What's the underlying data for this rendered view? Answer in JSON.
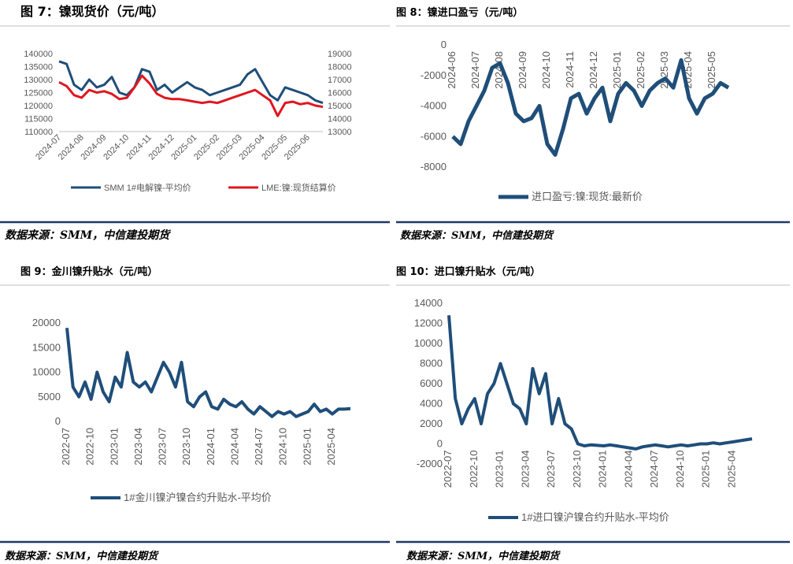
{
  "chart_data": [
    {
      "type": "line",
      "title": "图 7：镍现货价（元/吨）",
      "source": "数据来源：SMM，中信建投期货",
      "categories": [
        "2024-07",
        null,
        null,
        "2024-08",
        null,
        null,
        "2024-09",
        null,
        null,
        "2024-10",
        null,
        null,
        "2024-11",
        null,
        null,
        "2024-12",
        null,
        null,
        "2025-01",
        null,
        null,
        "2025-02",
        null,
        null,
        "2025-03",
        null,
        null,
        "2025-04",
        null,
        null,
        "2025-05",
        null,
        null,
        "2025-06",
        null,
        null
      ],
      "ylim": [
        110000,
        140000
      ],
      "yticks": [
        110000,
        115000,
        120000,
        125000,
        130000,
        135000,
        140000
      ],
      "y2lim": [
        13000,
        19000
      ],
      "y2ticks": [
        13000,
        14000,
        15000,
        16000,
        17000,
        18000,
        19000
      ],
      "legend": "bottom",
      "series": [
        {
          "name": "SMM 1#电解镍-平均价",
          "color": "#1f4e79",
          "values": [
            137000,
            136000,
            128000,
            126000,
            130000,
            127000,
            128000,
            131000,
            125000,
            124000,
            127000,
            134000,
            133000,
            126000,
            128000,
            125000,
            127000,
            129000,
            127000,
            126000,
            124000,
            125000,
            126000,
            127000,
            128000,
            132000,
            134000,
            129000,
            124000,
            122000,
            127000,
            126000,
            125000,
            124000,
            122000,
            121000
          ]
        },
        {
          "name": "LME:镍:现货结算价",
          "color": "#e0161f",
          "axis": "y2",
          "values": [
            16800,
            16500,
            15800,
            15600,
            16200,
            16000,
            16100,
            15900,
            15500,
            15600,
            16400,
            17300,
            16700,
            15900,
            15600,
            15500,
            15500,
            15400,
            15300,
            15200,
            15300,
            15200,
            15400,
            15600,
            15800,
            16000,
            16200,
            15800,
            15400,
            14200,
            15200,
            15300,
            15100,
            15200,
            15000,
            14900
          ]
        }
      ]
    },
    {
      "type": "line",
      "title": "图 8：镍进口盈亏（元/吨）",
      "source": "数据来源：SMM，中信建投期货",
      "categories": [
        "2024-06",
        null,
        null,
        "2024-07",
        null,
        null,
        "2024-08",
        null,
        null,
        "2024-09",
        null,
        null,
        "2024-10",
        null,
        null,
        "2024-11",
        null,
        null,
        "2024-12",
        null,
        null,
        "2025-01",
        null,
        null,
        "2025-02",
        null,
        null,
        "2025-03",
        null,
        null,
        "2025-04",
        null,
        null,
        "2025-05",
        null,
        null
      ],
      "ylim": [
        -8000,
        0
      ],
      "yticks": [
        0,
        -2000,
        -4000,
        -6000,
        -8000
      ],
      "legend": "bottom",
      "series": [
        {
          "name": "进口盈亏:镍:现货:最新价",
          "color": "#1f4e79",
          "values": [
            -6000,
            -6500,
            -5000,
            -4000,
            -3000,
            -1500,
            -1200,
            -2500,
            -4500,
            -5000,
            -4800,
            -4000,
            -6500,
            -7200,
            -5500,
            -3500,
            -3200,
            -4500,
            -3500,
            -2800,
            -5000,
            -3200,
            -2500,
            -3000,
            -4000,
            -3000,
            -2500,
            -2200,
            -2800,
            -1000,
            -3500,
            -4500,
            -3500,
            -3200,
            -2500,
            -2800
          ]
        }
      ]
    },
    {
      "type": "line",
      "title": "图 9：金川镍升贴水（元/吨）",
      "source": "数据来源：SMM，中信建投期货",
      "categories": [
        "2022-07",
        null,
        null,
        null,
        "2022-10",
        null,
        null,
        null,
        "2023-01",
        null,
        null,
        null,
        "2023-04",
        null,
        null,
        null,
        "2023-07",
        null,
        null,
        null,
        "2023-10",
        null,
        null,
        null,
        "2024-01",
        null,
        null,
        null,
        "2024-04",
        null,
        null,
        null,
        "2024-07",
        null,
        null,
        null,
        "2024-10",
        null,
        null,
        null,
        "2025-01",
        null,
        null,
        null,
        "2025-04",
        null,
        null,
        null
      ],
      "ylim": [
        0,
        20000
      ],
      "yticks": [
        0,
        5000,
        10000,
        15000,
        20000
      ],
      "legend": "bottom",
      "series": [
        {
          "name": "1#金川镍沪镍合约升贴水-平均价",
          "color": "#1f4e79",
          "values": [
            19000,
            7000,
            5000,
            8000,
            4500,
            10000,
            6000,
            4000,
            9000,
            7000,
            14000,
            8000,
            7000,
            8000,
            6000,
            9000,
            12000,
            10000,
            7000,
            12000,
            4000,
            3000,
            5000,
            6000,
            3000,
            2500,
            4500,
            3500,
            3000,
            4000,
            2500,
            1500,
            3000,
            2000,
            1000,
            2000,
            1500,
            2000,
            1000,
            1500,
            2000,
            3500,
            2000,
            2500,
            1500,
            2500,
            2500,
            2600
          ]
        }
      ]
    },
    {
      "type": "line",
      "title": "图 10：进口镍升贴水（元/吨）",
      "source": "数据来源：SMM，中信建投期货",
      "categories": [
        "2022-07",
        null,
        null,
        null,
        "2022-10",
        null,
        null,
        null,
        "2023-01",
        null,
        null,
        null,
        "2023-04",
        null,
        null,
        null,
        "2023-07",
        null,
        null,
        null,
        "2023-10",
        null,
        null,
        null,
        "2024-01",
        null,
        null,
        null,
        "2024-04",
        null,
        null,
        null,
        "2024-07",
        null,
        null,
        null,
        "2024-10",
        null,
        null,
        null,
        "2025-01",
        null,
        null,
        null,
        "2025-04",
        null,
        null,
        null
      ],
      "ylim": [
        -2000,
        14000
      ],
      "yticks": [
        -2000,
        0,
        2000,
        4000,
        6000,
        8000,
        10000,
        12000,
        14000
      ],
      "legend": "bottom",
      "series": [
        {
          "name": "1#进口镍沪镍合约升贴水-平均价",
          "color": "#1f4e79",
          "values": [
            12800,
            4500,
            2000,
            3500,
            4500,
            2000,
            5000,
            6000,
            8000,
            6000,
            4000,
            3500,
            2000,
            7500,
            5000,
            7000,
            2000,
            4500,
            2000,
            1500,
            0,
            -200,
            -100,
            -150,
            -200,
            -100,
            -200,
            -300,
            -400,
            -500,
            -300,
            -200,
            -100,
            -200,
            -300,
            -200,
            -100,
            -200,
            -100,
            0,
            0,
            100,
            0,
            100,
            200,
            300,
            400,
            500
          ]
        }
      ]
    }
  ]
}
